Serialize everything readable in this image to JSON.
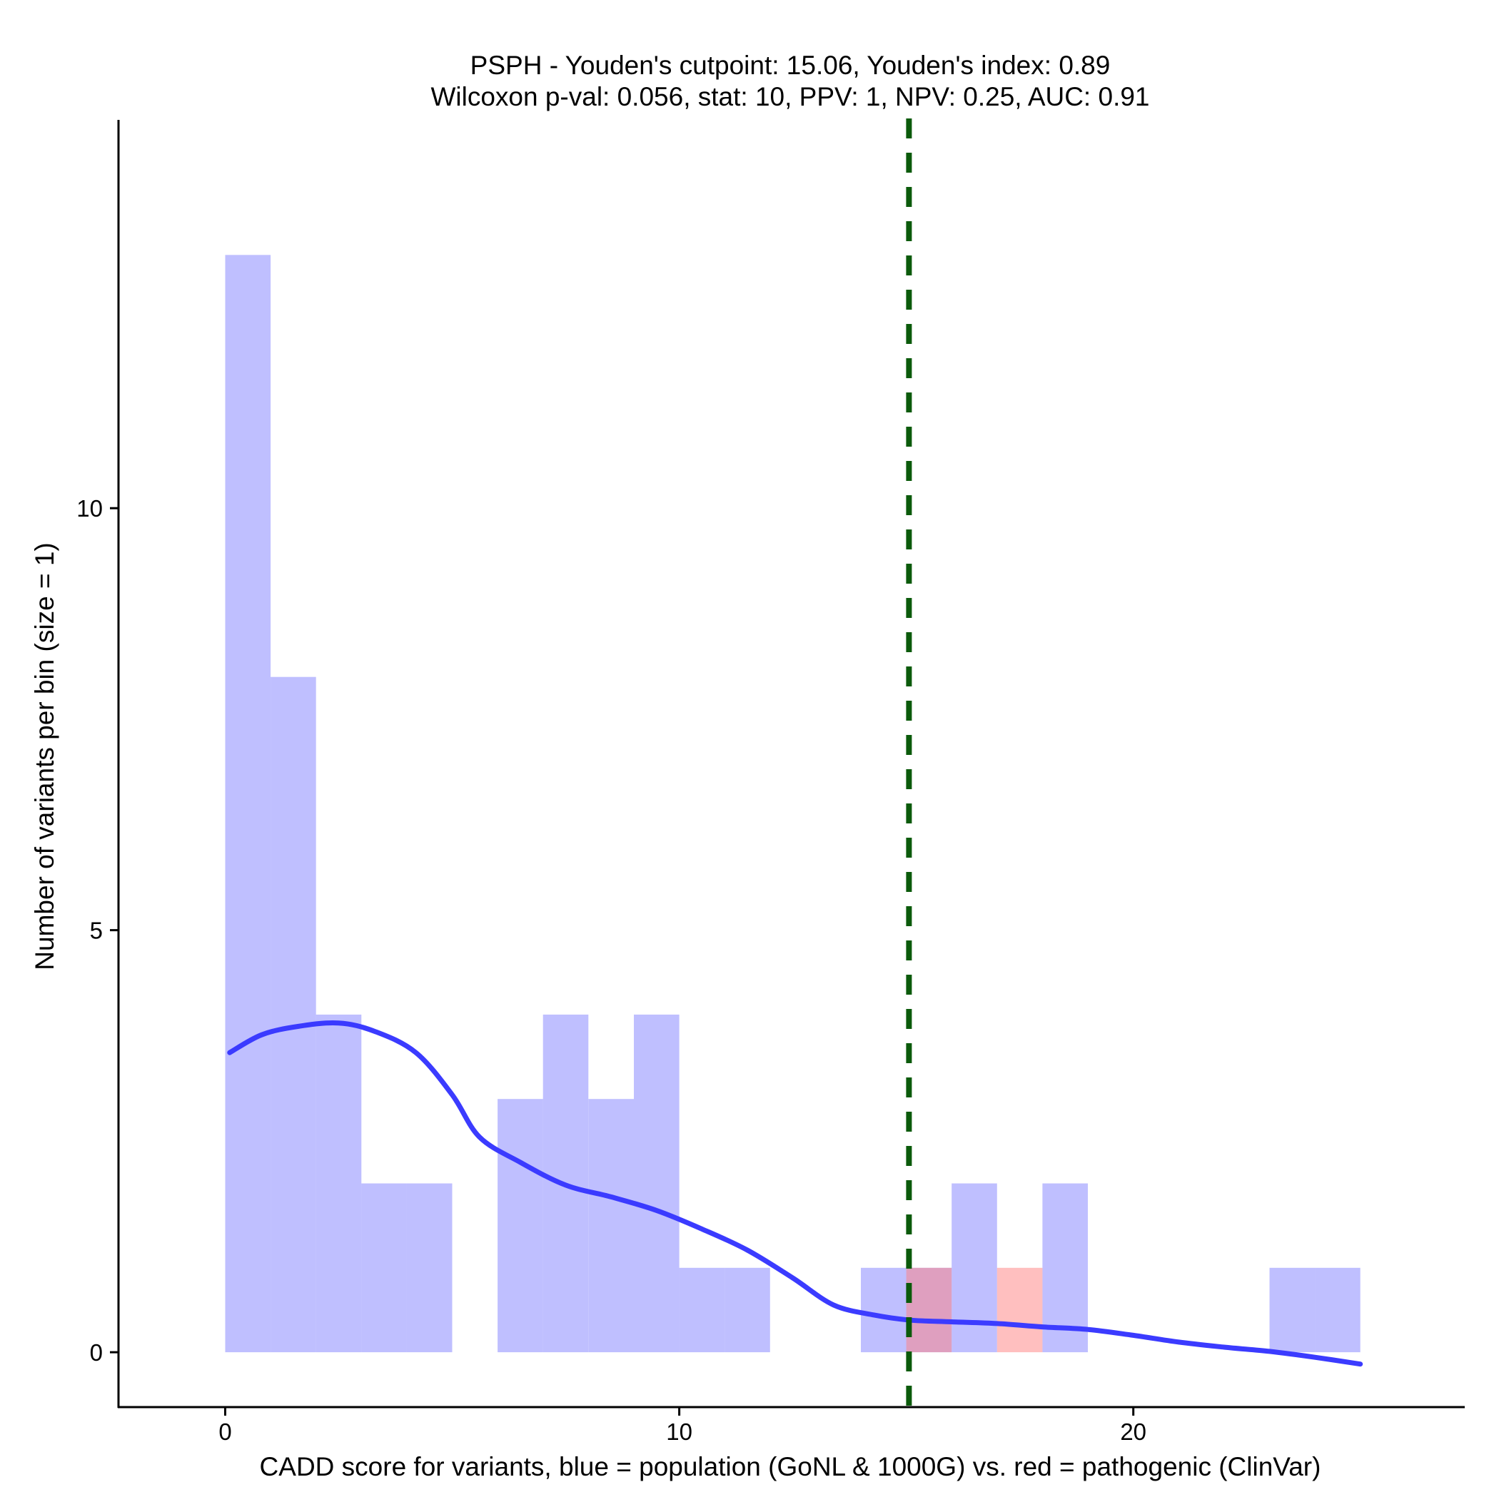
{
  "chart_data": {
    "type": "histogram",
    "title_line1": "PSPH - Youden's cutpoint: 15.06, Youden's index: 0.89",
    "title_line2": "Wilcoxon p-val: 0.056, stat: 10, PPV: 1, NPV: 0.25, AUC: 0.91",
    "xlabel": "CADD score for variants, blue = population (GoNL & 1000G) vs. red = pathogenic (ClinVar)",
    "ylabel": "Number of variants per bin (size = 1)",
    "xlim": [
      -2.35,
      27.3
    ],
    "ylim": [
      -0.65,
      14.6
    ],
    "x_ticks": [
      0,
      10,
      20
    ],
    "x_tick_labels": [
      "0",
      "10",
      "20"
    ],
    "y_ticks": [
      0,
      5,
      10
    ],
    "y_tick_labels": [
      "0",
      "5",
      "10"
    ],
    "bin_size": 1,
    "cutpoint": 15.06,
    "series": [
      {
        "name": "population (GoNL & 1000G)",
        "color": "#8080ff",
        "opacity": 0.5,
        "bins": [
          {
            "x0": 0,
            "x1": 1,
            "count": 13
          },
          {
            "x0": 1,
            "x1": 2,
            "count": 8
          },
          {
            "x0": 2,
            "x1": 3,
            "count": 4
          },
          {
            "x0": 3,
            "x1": 4,
            "count": 2
          },
          {
            "x0": 4,
            "x1": 5,
            "count": 2
          },
          {
            "x0": 6,
            "x1": 7,
            "count": 3
          },
          {
            "x0": 7,
            "x1": 8,
            "count": 4
          },
          {
            "x0": 8,
            "x1": 9,
            "count": 3
          },
          {
            "x0": 9,
            "x1": 10,
            "count": 4
          },
          {
            "x0": 10,
            "x1": 11,
            "count": 1
          },
          {
            "x0": 11,
            "x1": 12,
            "count": 1
          },
          {
            "x0": 14,
            "x1": 15,
            "count": 1
          },
          {
            "x0": 15,
            "x1": 16,
            "count": 1
          },
          {
            "x0": 16,
            "x1": 17,
            "count": 2
          },
          {
            "x0": 18,
            "x1": 19,
            "count": 2
          },
          {
            "x0": 23,
            "x1": 24,
            "count": 1
          },
          {
            "x0": 24,
            "x1": 25,
            "count": 1
          }
        ]
      },
      {
        "name": "pathogenic (ClinVar)",
        "color": "#ff8080",
        "opacity": 0.5,
        "bins": [
          {
            "x0": 15,
            "x1": 16,
            "count": 1
          },
          {
            "x0": 17,
            "x1": 18,
            "count": 1
          }
        ]
      }
    ],
    "density_curve": {
      "name": "population density (scaled)",
      "color": "#3b3bff",
      "points": [
        [
          0.1,
          3.55
        ],
        [
          0.8,
          3.76
        ],
        [
          1.6,
          3.86
        ],
        [
          2.5,
          3.9
        ],
        [
          3.3,
          3.8
        ],
        [
          4.2,
          3.55
        ],
        [
          5.0,
          3.05
        ],
        [
          5.6,
          2.55
        ],
        [
          6.5,
          2.25
        ],
        [
          7.5,
          1.98
        ],
        [
          8.5,
          1.84
        ],
        [
          9.5,
          1.68
        ],
        [
          10.5,
          1.46
        ],
        [
          11.5,
          1.21
        ],
        [
          12.5,
          0.88
        ],
        [
          13.4,
          0.56
        ],
        [
          14.3,
          0.44
        ],
        [
          15.1,
          0.38
        ],
        [
          16.0,
          0.36
        ],
        [
          17.0,
          0.34
        ],
        [
          18.0,
          0.3
        ],
        [
          19.0,
          0.27
        ],
        [
          20.0,
          0.2
        ],
        [
          21.0,
          0.12
        ],
        [
          22.0,
          0.06
        ],
        [
          23.0,
          0.01
        ],
        [
          24.0,
          -0.06
        ],
        [
          25.0,
          -0.14
        ]
      ]
    },
    "reference_line": {
      "x": 15.06,
      "label": "Youden's cutpoint",
      "color": "#0b5a0b",
      "style": "dashed"
    }
  }
}
